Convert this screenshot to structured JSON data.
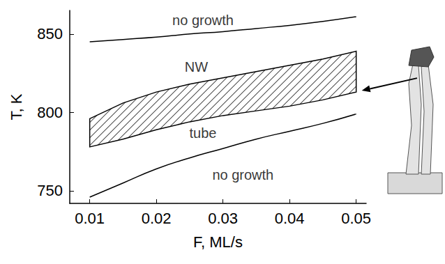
{
  "chart_data": {
    "type": "line",
    "xlabel": "F, ML/s",
    "ylabel": "T, K",
    "x": [
      0.01,
      0.015,
      0.02,
      0.025,
      0.03,
      0.035,
      0.04,
      0.045,
      0.05
    ],
    "series": [
      {
        "type": "line",
        "color": "#000000",
        "line_style": "solid",
        "values": [
          845,
          846.5,
          848,
          850,
          851.5,
          853.5,
          855.5,
          858,
          861
        ]
      },
      {
        "type": "band",
        "color": "#000000",
        "line_style": "solid",
        "upper": [
          796,
          806,
          813,
          818,
          822,
          826,
          830,
          834,
          839
        ],
        "lower": [
          778,
          783,
          789,
          794,
          798,
          801,
          804,
          808,
          813
        ]
      },
      {
        "type": "line",
        "color": "#000000",
        "line_style": "solid",
        "values": [
          746,
          755,
          764,
          771,
          777,
          783,
          788,
          793,
          799
        ]
      }
    ],
    "annotations": [
      {
        "text": "no growth",
        "x": 0.027,
        "y": 859
      },
      {
        "text": "NW",
        "x": 0.026,
        "y": 829
      },
      {
        "text": "tube",
        "x": 0.027,
        "y": 787
      },
      {
        "text": "no growth",
        "x": 0.033,
        "y": 760
      }
    ],
    "xlim": [
      0.007,
      0.0515
    ],
    "ylim": [
      742,
      865
    ],
    "xticks": [
      0.01,
      0.02,
      0.03,
      0.04,
      0.05
    ],
    "yticks": [
      750,
      800,
      850
    ],
    "grid": false
  }
}
